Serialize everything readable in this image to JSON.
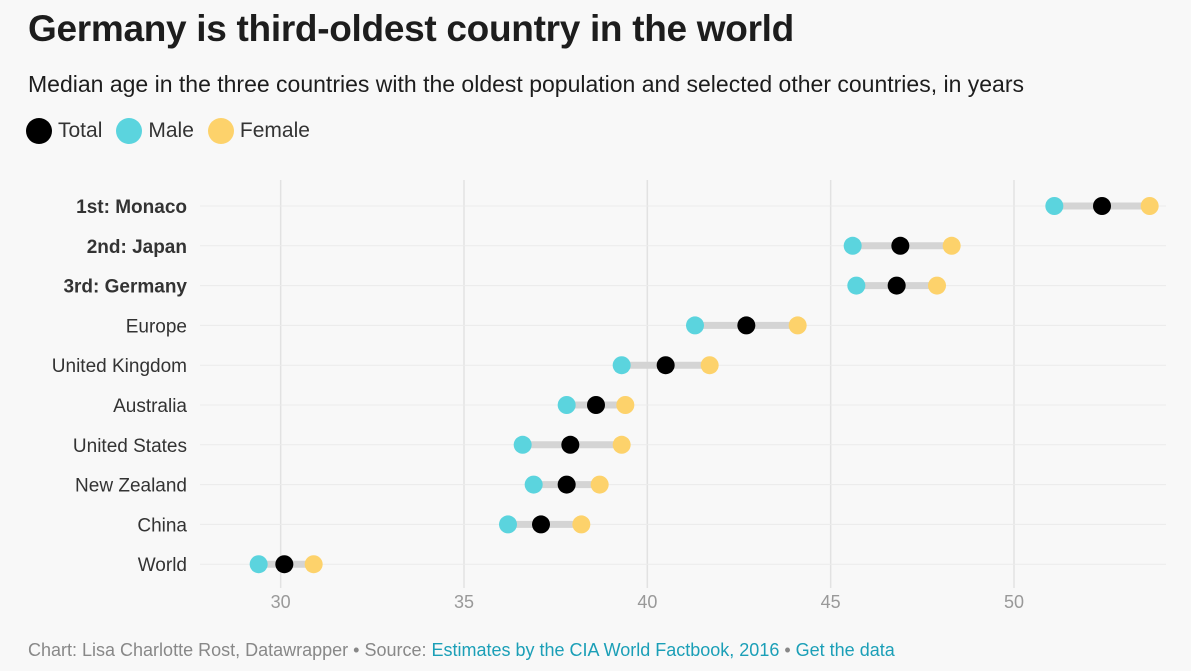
{
  "title": "Germany is third-oldest country in the world",
  "subtitle": "Median age in the three countries with the oldest population and selected other countries, in years",
  "legend": [
    {
      "label": "Total",
      "color": "#000000"
    },
    {
      "label": "Male",
      "color": "#5bd4de"
    },
    {
      "label": "Female",
      "color": "#fdd26b"
    }
  ],
  "footer": {
    "credit": "Chart: Lisa Charlotte Rost, Datawrapper",
    "sep1": " • Source: ",
    "source": "Estimates by the CIA World Factbook, 2016",
    "sep2": " • ",
    "data_link": "Get the data"
  },
  "chart_data": {
    "type": "dot-range",
    "title": "Germany is third-oldest country in the world",
    "subtitle": "Median age in the three countries with the oldest population and selected other countries, in years",
    "xlim": [
      27.8,
      54.2
    ],
    "xticks": [
      30,
      35,
      40,
      45,
      50
    ],
    "grid": true,
    "legend_position": "top-left",
    "categories": [
      "1st: Monaco",
      "2nd: Japan",
      "3rd: Germany",
      "Europe",
      "United Kingdom",
      "Australia",
      "United States",
      "New Zealand",
      "China",
      "World"
    ],
    "bold_categories": [
      "1st: Monaco",
      "2nd: Japan",
      "3rd: Germany"
    ],
    "series": [
      {
        "name": "Total",
        "color": "#000000",
        "values": [
          52.4,
          46.9,
          46.8,
          42.7,
          40.5,
          38.6,
          37.9,
          37.8,
          37.1,
          30.1
        ]
      },
      {
        "name": "Male",
        "color": "#5bd4de",
        "values": [
          51.1,
          45.6,
          45.7,
          41.3,
          39.3,
          37.8,
          36.6,
          36.9,
          36.2,
          29.4
        ]
      },
      {
        "name": "Female",
        "color": "#fdd26b",
        "values": [
          53.7,
          48.3,
          47.9,
          44.1,
          41.7,
          39.4,
          39.3,
          38.7,
          38.2,
          30.9
        ]
      }
    ]
  }
}
